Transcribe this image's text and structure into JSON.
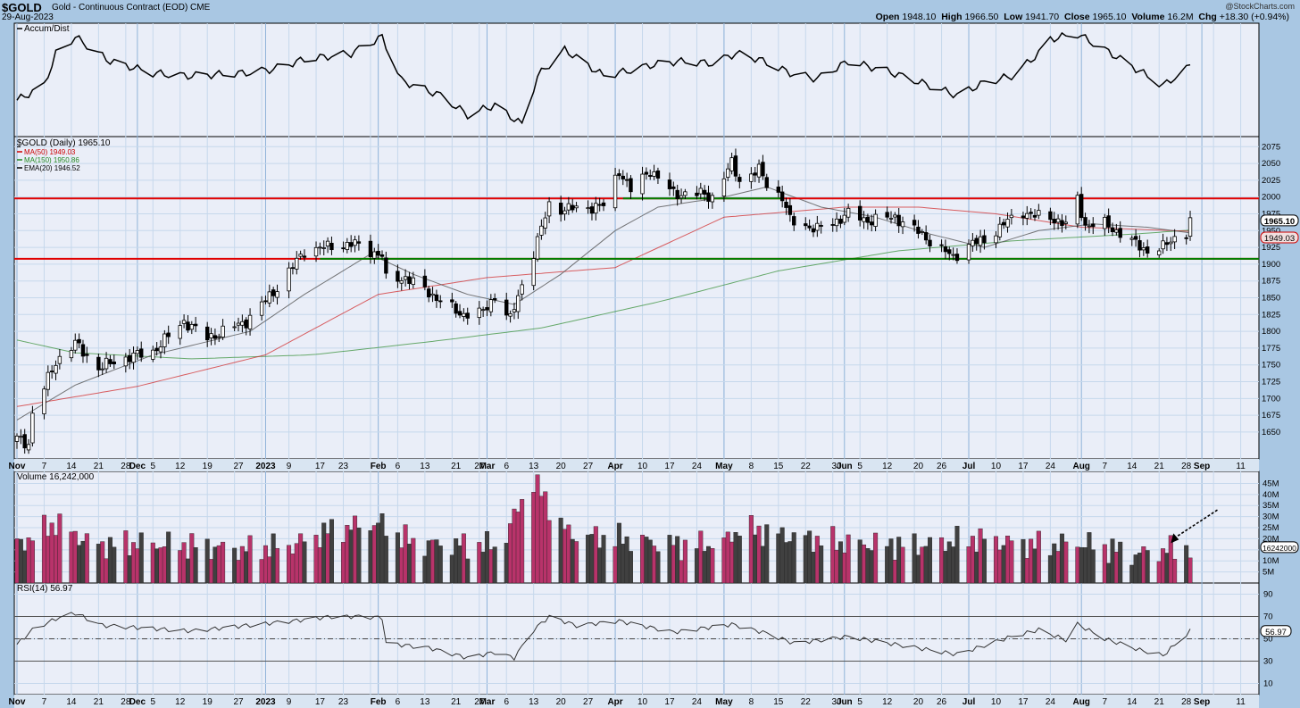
{
  "header": {
    "symbol": "$GOLD",
    "description": "Gold - Continuous Contract (EOD) CME",
    "date": "29-Aug-2023",
    "brand": "@StockCharts.com",
    "open_label": "Open",
    "open": "1948.10",
    "high_label": "High",
    "high": "1966.50",
    "low_label": "Low",
    "low": "1941.70",
    "close_label": "Close",
    "close": "1965.10",
    "volume_label": "Volume",
    "volume": "16.2M",
    "chg_label": "Chg",
    "chg": "+18.30 (+0.94%)"
  },
  "panels": {
    "ad": {
      "label": "Accum/Dist"
    },
    "price": {
      "label": "$GOLD (Daily) 1965.10",
      "legend": [
        {
          "text": "MA(50) 1949.03",
          "color": "#cc0000"
        },
        {
          "text": "MA(150) 1950.86",
          "color": "#228822"
        },
        {
          "text": "EMA(20) 1946.52",
          "color": "#000000"
        }
      ],
      "last_close_tag": "1965.10",
      "ma50_tag": "1949.03"
    },
    "volume": {
      "label": "Volume 16,242,000",
      "last_tag": "16242000"
    },
    "rsi": {
      "label": "RSI(14) 56.97",
      "last_tag": "56.97"
    }
  },
  "colors": {
    "up": "#ffffff",
    "down": "#000000",
    "vol_up": "#b8336a",
    "vol_down": "#404040",
    "support": "#008000",
    "resistance": "#e00000",
    "panel_bg": "#eaeef8",
    "grid": "#c6d8ec"
  },
  "chart_data": {
    "type": "candlestick",
    "xticks": [
      "Nov",
      "7",
      "14",
      "21",
      "28",
      "Dec",
      "5",
      "12",
      "19",
      "27",
      "2023",
      "9",
      "17",
      "23",
      "Feb",
      "6",
      "13",
      "21",
      "27",
      "Mar",
      "6",
      "13",
      "20",
      "27",
      "Apr",
      "10",
      "17",
      "24",
      "May",
      "8",
      "15",
      "22",
      "30",
      "Jun",
      "5",
      "12",
      "20",
      "26",
      "Jul",
      "10",
      "17",
      "24",
      "Aug",
      "7",
      "14",
      "21",
      "28",
      "Sep",
      "11"
    ],
    "price_axis": {
      "min": 1610,
      "max": 2090,
      "ticks": [
        1650,
        1675,
        1700,
        1725,
        1750,
        1775,
        1800,
        1825,
        1850,
        1875,
        1900,
        1925,
        1950,
        1975,
        2000,
        2025,
        2050,
        2075
      ]
    },
    "horizontal_lines": [
      {
        "value": 1998,
        "color": "#e00000",
        "name": "resistance"
      },
      {
        "value": 1908,
        "color": "#e00000",
        "name": "support"
      }
    ],
    "close_keypoints": [
      [
        "2022-10-31",
        1640
      ],
      [
        "2022-11-03",
        1632
      ],
      [
        "2022-11-04",
        1678
      ],
      [
        "2022-11-10",
        1755
      ],
      [
        "2022-11-15",
        1782
      ],
      [
        "2022-11-21",
        1745
      ],
      [
        "2022-11-25",
        1755
      ],
      [
        "2022-11-29",
        1762
      ],
      [
        "2022-12-05",
        1770
      ],
      [
        "2022-12-13",
        1815
      ],
      [
        "2022-12-19",
        1790
      ],
      [
        "2022-12-29",
        1815
      ],
      [
        "2023-01-06",
        1865
      ],
      [
        "2023-01-13",
        1920
      ],
      [
        "2023-01-20",
        1927
      ],
      [
        "2023-01-26",
        1930
      ],
      [
        "2023-02-02",
        1912
      ],
      [
        "2023-02-03",
        1877
      ],
      [
        "2023-02-08",
        1880
      ],
      [
        "2023-02-14",
        1858
      ],
      [
        "2023-02-22",
        1826
      ],
      [
        "2023-02-28",
        1828
      ],
      [
        "2023-03-03",
        1853
      ],
      [
        "2023-03-07",
        1817
      ],
      [
        "2023-03-10",
        1870
      ],
      [
        "2023-03-13",
        1917
      ],
      [
        "2023-03-17",
        1989
      ],
      [
        "2023-03-20",
        1982
      ],
      [
        "2023-03-24",
        1983
      ],
      [
        "2023-03-31",
        1987
      ],
      [
        "2023-04-04",
        2040
      ],
      [
        "2023-04-07",
        2010
      ],
      [
        "2023-04-12",
        2040
      ],
      [
        "2023-04-18",
        2005
      ],
      [
        "2023-04-25",
        2005
      ],
      [
        "2023-04-28",
        2000
      ],
      [
        "2023-05-03",
        2050
      ],
      [
        "2023-05-05",
        2025
      ],
      [
        "2023-05-10",
        2040
      ],
      [
        "2023-05-12",
        2020
      ],
      [
        "2023-05-16",
        2000
      ],
      [
        "2023-05-18",
        1965
      ],
      [
        "2023-05-25",
        1952
      ],
      [
        "2023-05-30",
        1965
      ],
      [
        "2023-06-02",
        1975
      ],
      [
        "2023-06-07",
        1965
      ],
      [
        "2023-06-14",
        1970
      ],
      [
        "2023-06-20",
        1948
      ],
      [
        "2023-06-23",
        1935
      ],
      [
        "2023-06-29",
        1910
      ],
      [
        "2023-07-03",
        1930
      ],
      [
        "2023-07-07",
        1935
      ],
      [
        "2023-07-12",
        1960
      ],
      [
        "2023-07-17",
        1978
      ],
      [
        "2023-07-20",
        1972
      ],
      [
        "2023-07-25",
        1968
      ],
      [
        "2023-07-28",
        1958
      ],
      [
        "2023-07-31",
        1996
      ],
      [
        "2023-08-02",
        1958
      ],
      [
        "2023-08-07",
        1960
      ],
      [
        "2023-08-11",
        1946
      ],
      [
        "2023-08-15",
        1930
      ],
      [
        "2023-08-18",
        1920
      ],
      [
        "2023-08-22",
        1925
      ],
      [
        "2023-08-25",
        1940
      ],
      [
        "2023-08-28",
        1947
      ],
      [
        "2023-08-29",
        1965.1
      ]
    ],
    "ema20_keypoints": [
      [
        "2022-10-31",
        1668
      ],
      [
        "2022-11-15",
        1720
      ],
      [
        "2022-12-05",
        1765
      ],
      [
        "2022-12-30",
        1800
      ],
      [
        "2023-01-13",
        1855
      ],
      [
        "2023-01-30",
        1915
      ],
      [
        "2023-02-10",
        1885
      ],
      [
        "2023-02-24",
        1855
      ],
      [
        "2023-03-08",
        1840
      ],
      [
        "2023-03-20",
        1885
      ],
      [
        "2023-04-03",
        1950
      ],
      [
        "2023-04-14",
        1985
      ],
      [
        "2023-05-01",
        2000
      ],
      [
        "2023-05-12",
        2015
      ],
      [
        "2023-05-26",
        1985
      ],
      [
        "2023-06-09",
        1970
      ],
      [
        "2023-06-23",
        1945
      ],
      [
        "2023-07-07",
        1925
      ],
      [
        "2023-07-21",
        1950
      ],
      [
        "2023-08-04",
        1960
      ],
      [
        "2023-08-18",
        1955
      ],
      [
        "2023-08-29",
        1946.52
      ]
    ],
    "ma50_keypoints": [
      [
        "2022-10-31",
        1688
      ],
      [
        "2022-12-01",
        1718
      ],
      [
        "2023-01-03",
        1765
      ],
      [
        "2023-02-01",
        1855
      ],
      [
        "2023-03-01",
        1880
      ],
      [
        "2023-04-03",
        1895
      ],
      [
        "2023-05-01",
        1970
      ],
      [
        "2023-06-01",
        1985
      ],
      [
        "2023-06-20",
        1985
      ],
      [
        "2023-07-10",
        1975
      ],
      [
        "2023-08-01",
        1955
      ],
      [
        "2023-08-29",
        1949.03
      ]
    ],
    "ma150_keypoints": [
      [
        "2022-10-31",
        1787
      ],
      [
        "2022-11-15",
        1768
      ],
      [
        "2022-12-15",
        1759
      ],
      [
        "2023-01-15",
        1765
      ],
      [
        "2023-02-15",
        1785
      ],
      [
        "2023-03-15",
        1805
      ],
      [
        "2023-04-15",
        1845
      ],
      [
        "2023-05-15",
        1890
      ],
      [
        "2023-06-15",
        1920
      ],
      [
        "2023-07-15",
        1935
      ],
      [
        "2023-08-15",
        1945
      ],
      [
        "2023-08-29",
        1950.86
      ]
    ],
    "ad_keypoints": [
      [
        "2022-10-31",
        0.3
      ],
      [
        "2022-11-07",
        0.45
      ],
      [
        "2022-11-10",
        0.78
      ],
      [
        "2022-11-15",
        0.95
      ],
      [
        "2022-11-24",
        0.7
      ],
      [
        "2022-12-05",
        0.58
      ],
      [
        "2022-12-14",
        0.55
      ],
      [
        "2022-12-29",
        0.58
      ],
      [
        "2023-01-05",
        0.62
      ],
      [
        "2023-01-13",
        0.72
      ],
      [
        "2023-01-25",
        0.78
      ],
      [
        "2023-02-02",
        0.95
      ],
      [
        "2023-02-07",
        0.5
      ],
      [
        "2023-02-17",
        0.35
      ],
      [
        "2023-02-24",
        0.15
      ],
      [
        "2023-03-03",
        0.25
      ],
      [
        "2023-03-10",
        0.05
      ],
      [
        "2023-03-14",
        0.55
      ],
      [
        "2023-03-21",
        0.82
      ],
      [
        "2023-03-31",
        0.55
      ],
      [
        "2023-04-06",
        0.6
      ],
      [
        "2023-04-12",
        0.66
      ],
      [
        "2023-04-19",
        0.7
      ],
      [
        "2023-04-28",
        0.68
      ],
      [
        "2023-05-04",
        0.78
      ],
      [
        "2023-05-10",
        0.72
      ],
      [
        "2023-05-18",
        0.58
      ],
      [
        "2023-05-25",
        0.52
      ],
      [
        "2023-06-02",
        0.7
      ],
      [
        "2023-06-12",
        0.6
      ],
      [
        "2023-06-23",
        0.45
      ],
      [
        "2023-06-30",
        0.35
      ],
      [
        "2023-07-07",
        0.48
      ],
      [
        "2023-07-14",
        0.55
      ],
      [
        "2023-07-21",
        0.78
      ],
      [
        "2023-07-24",
        0.93
      ],
      [
        "2023-07-31",
        0.98
      ],
      [
        "2023-08-07",
        0.82
      ],
      [
        "2023-08-16",
        0.6
      ],
      [
        "2023-08-22",
        0.45
      ],
      [
        "2023-08-29",
        0.65
      ]
    ],
    "volume_keypoints": [
      [
        "2022-10-31",
        17
      ],
      [
        "2022-11-10",
        27
      ],
      [
        "2022-11-20",
        17
      ],
      [
        "2022-12-01",
        18
      ],
      [
        "2022-12-15",
        17
      ],
      [
        "2022-12-28",
        15
      ],
      [
        "2023-01-10",
        17
      ],
      [
        "2023-01-20",
        24
      ],
      [
        "2023-02-01",
        27
      ],
      [
        "2023-02-10",
        18
      ],
      [
        "2023-02-25",
        17
      ],
      [
        "2023-03-05",
        17
      ],
      [
        "2023-03-10",
        38
      ],
      [
        "2023-03-13",
        46
      ],
      [
        "2023-03-17",
        35
      ],
      [
        "2023-03-22",
        22
      ],
      [
        "2023-04-05",
        20
      ],
      [
        "2023-04-20",
        17
      ],
      [
        "2023-05-01",
        18
      ],
      [
        "2023-05-05",
        25
      ],
      [
        "2023-05-15",
        22
      ],
      [
        "2023-06-01",
        18
      ],
      [
        "2023-06-20",
        17
      ],
      [
        "2023-07-05",
        20
      ],
      [
        "2023-07-20",
        17
      ],
      [
        "2023-08-01",
        18
      ],
      [
        "2023-08-15",
        13
      ],
      [
        "2023-08-29",
        16.2
      ]
    ],
    "volume_axis": {
      "ticks": [
        "5M",
        "10M",
        "15M",
        "20M",
        "25M",
        "30M",
        "35M",
        "40M",
        "45M"
      ],
      "max": 48
    },
    "rsi_keypoints": [
      [
        "2022-10-31",
        45
      ],
      [
        "2022-11-04",
        58
      ],
      [
        "2022-11-10",
        68
      ],
      [
        "2022-11-15",
        73
      ],
      [
        "2022-11-22",
        62
      ],
      [
        "2022-12-01",
        60
      ],
      [
        "2022-12-15",
        57
      ],
      [
        "2022-12-29",
        62
      ],
      [
        "2023-01-10",
        66
      ],
      [
        "2023-01-20",
        70
      ],
      [
        "2023-01-27",
        70
      ],
      [
        "2023-02-02",
        69
      ],
      [
        "2023-02-03",
        46
      ],
      [
        "2023-02-14",
        42
      ],
      [
        "2023-02-24",
        33
      ],
      [
        "2023-03-03",
        38
      ],
      [
        "2023-03-08",
        33
      ],
      [
        "2023-03-13",
        58
      ],
      [
        "2023-03-17",
        70
      ],
      [
        "2023-03-24",
        62
      ],
      [
        "2023-04-04",
        66
      ],
      [
        "2023-04-18",
        56
      ],
      [
        "2023-05-03",
        63
      ],
      [
        "2023-05-12",
        55
      ],
      [
        "2023-05-19",
        46
      ],
      [
        "2023-06-02",
        52
      ],
      [
        "2023-06-23",
        40
      ],
      [
        "2023-06-30",
        36
      ],
      [
        "2023-07-14",
        52
      ],
      [
        "2023-07-21",
        58
      ],
      [
        "2023-07-28",
        49
      ],
      [
        "2023-07-31",
        63
      ],
      [
        "2023-08-07",
        50
      ],
      [
        "2023-08-16",
        40
      ],
      [
        "2023-08-22",
        35
      ],
      [
        "2023-08-29",
        56.97
      ]
    ],
    "rsi_axis": {
      "ticks": [
        10,
        30,
        50,
        70,
        90
      ],
      "overbought": 70,
      "oversold": 30,
      "mid": 50
    }
  }
}
